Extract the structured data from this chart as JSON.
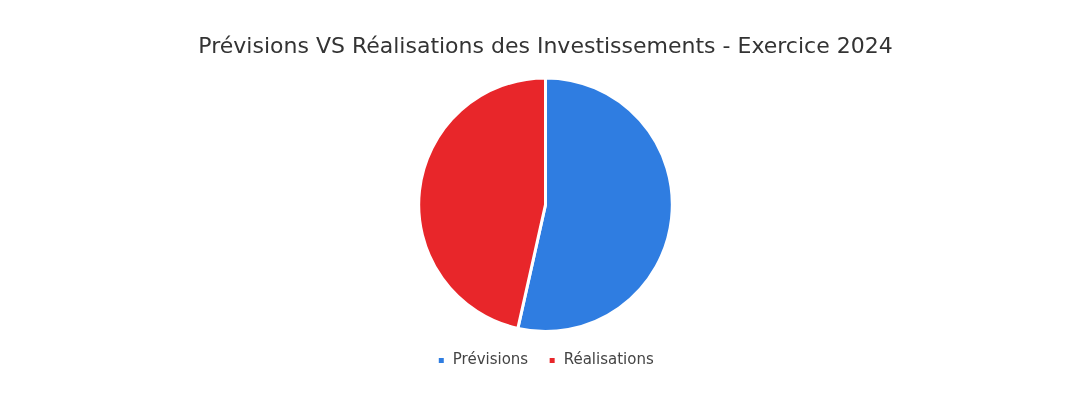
{
  "chart_data": {
    "type": "pie",
    "title": "Prévisions VS Réalisations des Investissements - Exercice 2024",
    "categories": [
      "Prévisions",
      "Réalisations"
    ],
    "values": [
      53.5,
      46.5
    ],
    "colors": [
      "#2f7de1",
      "#e8262a"
    ],
    "legend": "bottom"
  }
}
